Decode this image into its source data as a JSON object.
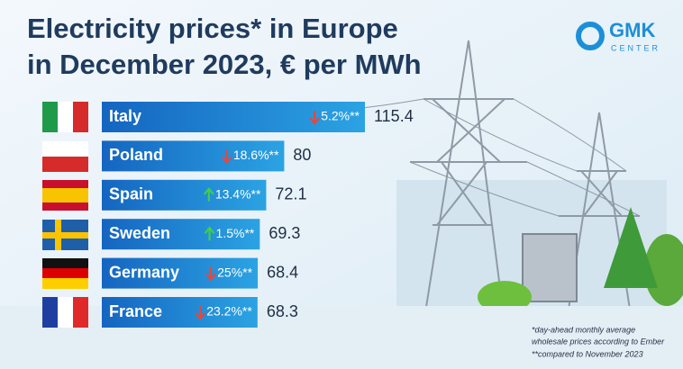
{
  "title_lines": [
    "Electricity prices* in Europe",
    "in December 2023, € per MWh"
  ],
  "logo": {
    "name": "GMK",
    "sub": "CENTER"
  },
  "chart_data": {
    "type": "bar",
    "orientation": "horizontal",
    "categories": [
      "Italy",
      "Poland",
      "Spain",
      "Sweden",
      "Germany",
      "France"
    ],
    "values": [
      115.4,
      80,
      72.1,
      69.3,
      68.4,
      68.3
    ],
    "changes": [
      -5.2,
      -18.6,
      13.4,
      1.5,
      -25,
      -23.2
    ],
    "change_labels": [
      "5.2%**",
      "18.6%**",
      "13.4%**",
      "1.5%**",
      "25%**",
      "23.2%**"
    ],
    "color": "#1b74c9"
  },
  "footnotes": [
    "*day-ahead monthly average",
    "wholesale prices according to Ember",
    "**compared to November 2023"
  ]
}
